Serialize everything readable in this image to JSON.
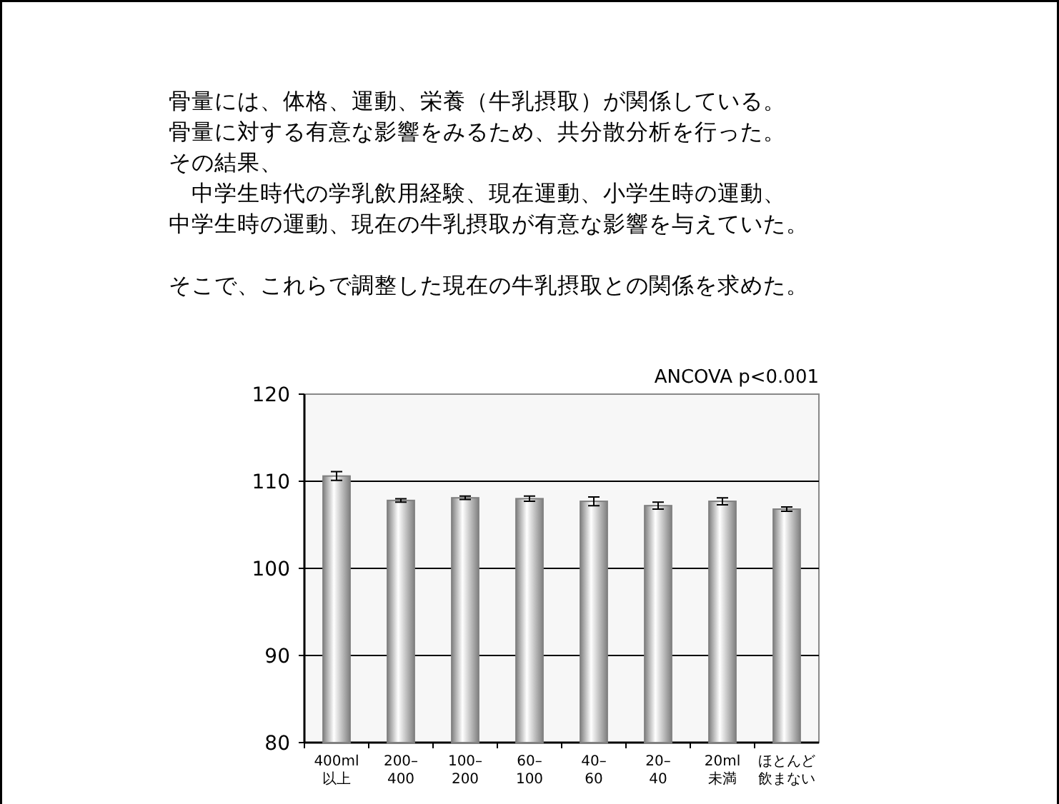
{
  "chart_data": {
    "type": "bar",
    "annotations": [
      "骨量には、体格、運動、栄養（牛乳摂取）が関係している。",
      "骨量に対する有意な影響をみるため、共分散分析を行った。",
      "その結果、",
      "　中学生時代の学乳飲用経験、現在運動、小学生時の運動、",
      "中学生時の運動、現在の牛乳摂取が有意な影響を与えていた。",
      "ANCOVA p<0.001"
    ],
    "subtitle": "そこで、これらで調整した現在の牛乳摂取との関係を求めた。",
    "categories": [
      "400ml\n以上",
      "200–\n400",
      "100–\n200",
      "60–\n100",
      "40–\n60",
      "20–\n40",
      "20ml\n未満",
      "ほとんど飲まない"
    ],
    "values": [
      110.6,
      107.8,
      108.1,
      108.0,
      107.7,
      107.2,
      107.7,
      106.8
    ],
    "errors": [
      0.5,
      0.2,
      0.2,
      0.3,
      0.5,
      0.4,
      0.4,
      0.25
    ],
    "color": "#808080",
    "ylim": [
      80,
      120
    ],
    "yticks": [
      80,
      90,
      100,
      110,
      120
    ],
    "grid": "y"
  }
}
